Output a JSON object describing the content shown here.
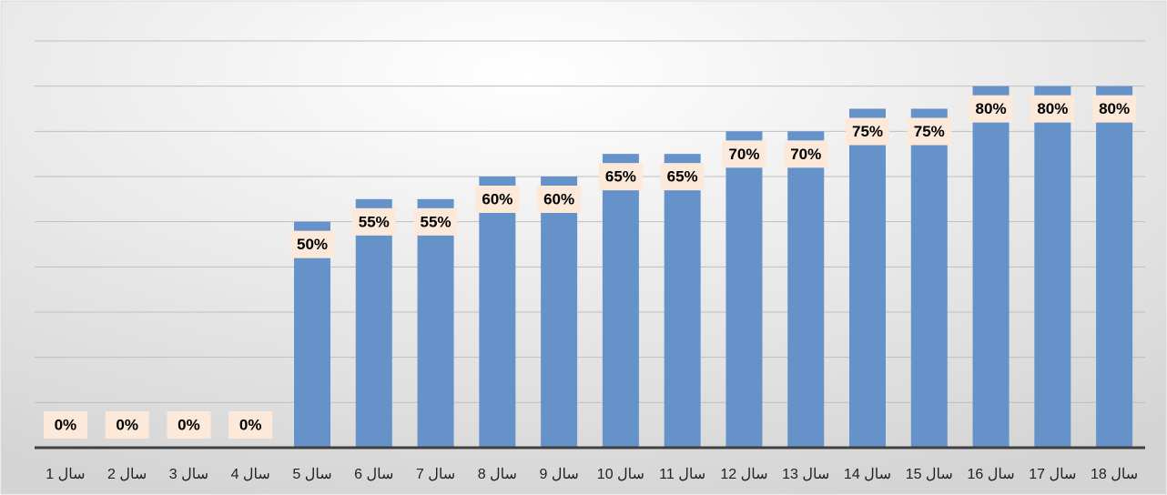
{
  "chart_data": {
    "type": "bar",
    "categories": [
      "سال 1",
      "سال 2",
      "سال 3",
      "سال 4",
      "سال 5",
      "سال 6",
      "سال 7",
      "سال 8",
      "سال 9",
      "سال 10",
      "سال 11",
      "سال 12",
      "سال 13",
      "سال 14",
      "سال 15",
      "سال 16",
      "سال 17",
      "سال 18"
    ],
    "values": [
      0,
      0,
      0,
      0,
      50,
      55,
      55,
      60,
      60,
      65,
      65,
      70,
      70,
      75,
      75,
      80,
      80,
      80
    ],
    "value_labels": [
      "0%",
      "0%",
      "0%",
      "0%",
      "50%",
      "55%",
      "55%",
      "60%",
      "60%",
      "65%",
      "65%",
      "70%",
      "70%",
      "75%",
      "75%",
      "80%",
      "80%",
      "80%"
    ],
    "color": "#6592c9",
    "ylim": [
      0,
      90
    ],
    "yticks": [
      0,
      10,
      20,
      30,
      40,
      50,
      60,
      70,
      80,
      90
    ],
    "grid": true
  }
}
